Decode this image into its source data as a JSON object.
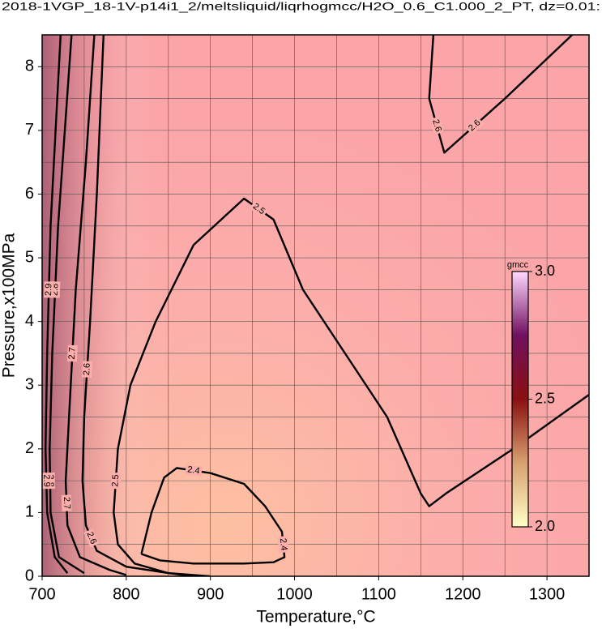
{
  "chart_data": {
    "type": "contour",
    "title": "2018-1VGP_18-1V-p14i1_2/meltsliquid/liqrhogmcc/H2O_0.6_C1.000_2_PT, dz=0.01:",
    "x_label": "Temperature,°C",
    "y_label": "Pressure,x100MPa",
    "xlim": [
      700,
      1350
    ],
    "ylim": [
      0,
      8.5
    ],
    "xticks": [
      700,
      800,
      900,
      1000,
      1100,
      1200,
      1300
    ],
    "yticks": [
      0,
      1,
      2,
      3,
      4,
      5,
      6,
      7,
      8
    ],
    "xminorticks": [
      750,
      850,
      950,
      1050,
      1150,
      1250
    ],
    "yminorticks": [
      0.5,
      1.5,
      2.5,
      3.5,
      4.5,
      5.5,
      6.5,
      7.5
    ],
    "grid": true,
    "colorbar": {
      "label": "gmcc",
      "clim": [
        2.0,
        3.0
      ],
      "ticks": [
        {
          "value": 2.0,
          "label": "2.0"
        },
        2.5,
        {
          "value": 3.0,
          "label": "3.0"
        }
      ],
      "colors": [
        "#ffffc8",
        "#d8a070",
        "#8a1010",
        "#701060",
        "#ffd8ff"
      ]
    },
    "contours": [
      {
        "level": 2.4,
        "x": [
          818,
          830,
          845,
          860,
          900,
          940,
          965,
          985,
          988,
          975,
          940,
          880,
          840,
          818
        ],
        "y": [
          0.35,
          1.0,
          1.55,
          1.7,
          1.62,
          1.45,
          1.1,
          0.7,
          0.3,
          0.22,
          0.2,
          0.2,
          0.25,
          0.35
        ]
      },
      {
        "level": 2.5,
        "x": [
          900,
          850,
          810,
          790,
          785,
          790,
          805,
          835,
          880,
          940,
          975,
          1010,
          1060,
          1110,
          1150,
          1160,
          1180,
          1260,
          1350
        ],
        "y": [
          0.0,
          0.05,
          0.2,
          0.5,
          1.0,
          2.0,
          3.0,
          4.0,
          5.2,
          5.93,
          5.6,
          4.5,
          3.5,
          2.5,
          1.3,
          1.1,
          1.3,
          2.0,
          2.85
        ]
      },
      {
        "level": 2.6,
        "x": [
          773,
          765,
          757,
          750,
          748,
          752,
          765,
          800,
          850,
          880
        ],
        "y": [
          8.5,
          6.0,
          4.0,
          2.5,
          1.5,
          0.8,
          0.4,
          0.15,
          0.05,
          0.0
        ]
      },
      {
        "level": 2.6,
        "x": [
          1165,
          1160,
          1178,
          1250,
          1330
        ],
        "y": [
          8.5,
          7.5,
          6.65,
          7.5,
          8.5
        ]
      },
      {
        "level": 2.7,
        "x": [
          762,
          752,
          740,
          732,
          728,
          730,
          745,
          780,
          800
        ],
        "y": [
          8.5,
          6.5,
          4.5,
          2.5,
          1.5,
          0.8,
          0.3,
          0.1,
          0.02
        ]
      },
      {
        "level": 2.8,
        "x": [
          735,
          727,
          719,
          712,
          709,
          710,
          720,
          750
        ],
        "y": [
          8.5,
          7.0,
          5.5,
          3.5,
          2.0,
          1.0,
          0.3,
          0.05
        ]
      },
      {
        "level": 2.9,
        "x": [
          722,
          716,
          710,
          706,
          704,
          706,
          715,
          730
        ],
        "y": [
          8.5,
          7.0,
          5.5,
          3.5,
          2.0,
          1.0,
          0.3,
          0.05
        ]
      }
    ]
  }
}
